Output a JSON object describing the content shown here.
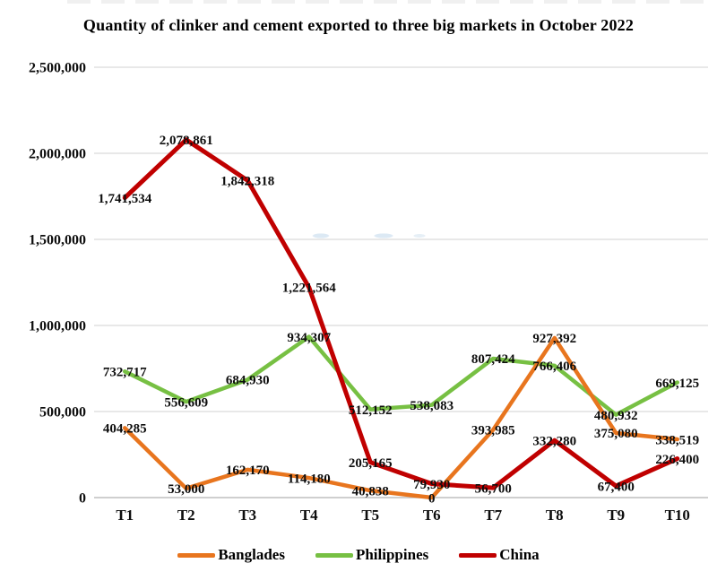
{
  "colors": {
    "banglades": "#E8751E",
    "philippines": "#77C043",
    "china": "#C00000",
    "gridline": "#D9D9D9",
    "axis": "#BFBFBF",
    "label_text": "#0d0d0d"
  },
  "chart_data": {
    "type": "line",
    "title": "Quantity of clinker and cement exported to three big markets in October 2022",
    "categories": [
      "T1",
      "T2",
      "T3",
      "T4",
      "T5",
      "T6",
      "T7",
      "T8",
      "T9",
      "T10"
    ],
    "series": [
      {
        "name": "Banglades",
        "color_key": "banglades",
        "values": [
          404285,
          53000,
          162170,
          114180,
          40838,
          0,
          393985,
          927392,
          375080,
          338519
        ]
      },
      {
        "name": "Philippines",
        "color_key": "philippines",
        "values": [
          732717,
          556609,
          684930,
          934307,
          512152,
          538083,
          807424,
          766406,
          480932,
          669125
        ]
      },
      {
        "name": "China",
        "color_key": "china",
        "values": [
          1741534,
          2078861,
          1842318,
          1221564,
          205165,
          79930,
          56700,
          332280,
          67400,
          226400
        ]
      }
    ],
    "ylim": [
      0,
      2500000
    ],
    "ytick_step": 500000,
    "ytick_labels": [
      "0",
      "500,000",
      "1,000,000",
      "1,500,000",
      "2,000,000",
      "2,500,000"
    ],
    "xlabel": "",
    "ylabel": "",
    "grid": "horizontal",
    "legend_position": "bottom",
    "data_labels": "center"
  }
}
